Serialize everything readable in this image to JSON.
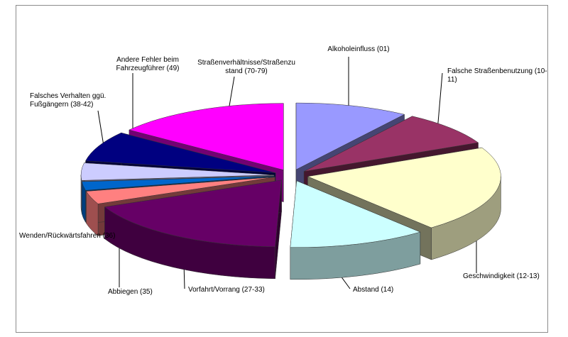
{
  "chart_data": {
    "type": "pie",
    "style": "3d-exploded",
    "title": "",
    "categories": [
      "Alkoholeinfluss (01)",
      "Falsche Straßenbenutzung (10-11)",
      "Geschwindigkeit (12-13)",
      "Abstand (14)",
      "Vorfahrt/Vorrang (27-33)",
      "Abbiegen (35)",
      "Wenden/Rückwärtsfahren (36)",
      "Falsches Verhalten ggü. Fußgängern (38-42)",
      "Andere Fehler beim Fahrzeugführer (49)",
      "Straßenverhältnisse/Straßenzustand (70-79)"
    ],
    "values": [
      9,
      8,
      20,
      11,
      17,
      3,
      2,
      4,
      7,
      14
    ],
    "colors": [
      "#9999ff",
      "#993366",
      "#ffffcc",
      "#ccffff",
      "#660066",
      "#ff8080",
      "#0066cc",
      "#ccccff",
      "#000080",
      "#ff00ff"
    ],
    "labels": [
      [
        "Alkoholeinfluss (01)"
      ],
      [
        "Falsche Straßenbenutzung (10-",
        "11)"
      ],
      [
        "Geschwindigkeit (12-13)"
      ],
      [
        "Abstand (14)"
      ],
      [
        "Vorfahrt/Vorrang (27-33)"
      ],
      [
        "Abbiegen (35)"
      ],
      [
        "Wenden/Rückwärtsfahren (36)"
      ],
      [
        "Falsches Verhalten ggü.",
        "Fußgängern (38-42)"
      ],
      [
        "Andere Fehler beim",
        "Fahrzeugführer (49)"
      ],
      [
        "Straßenverhältnisse/Straßenzu",
        "stand (70-79)"
      ]
    ],
    "legend": "none"
  }
}
